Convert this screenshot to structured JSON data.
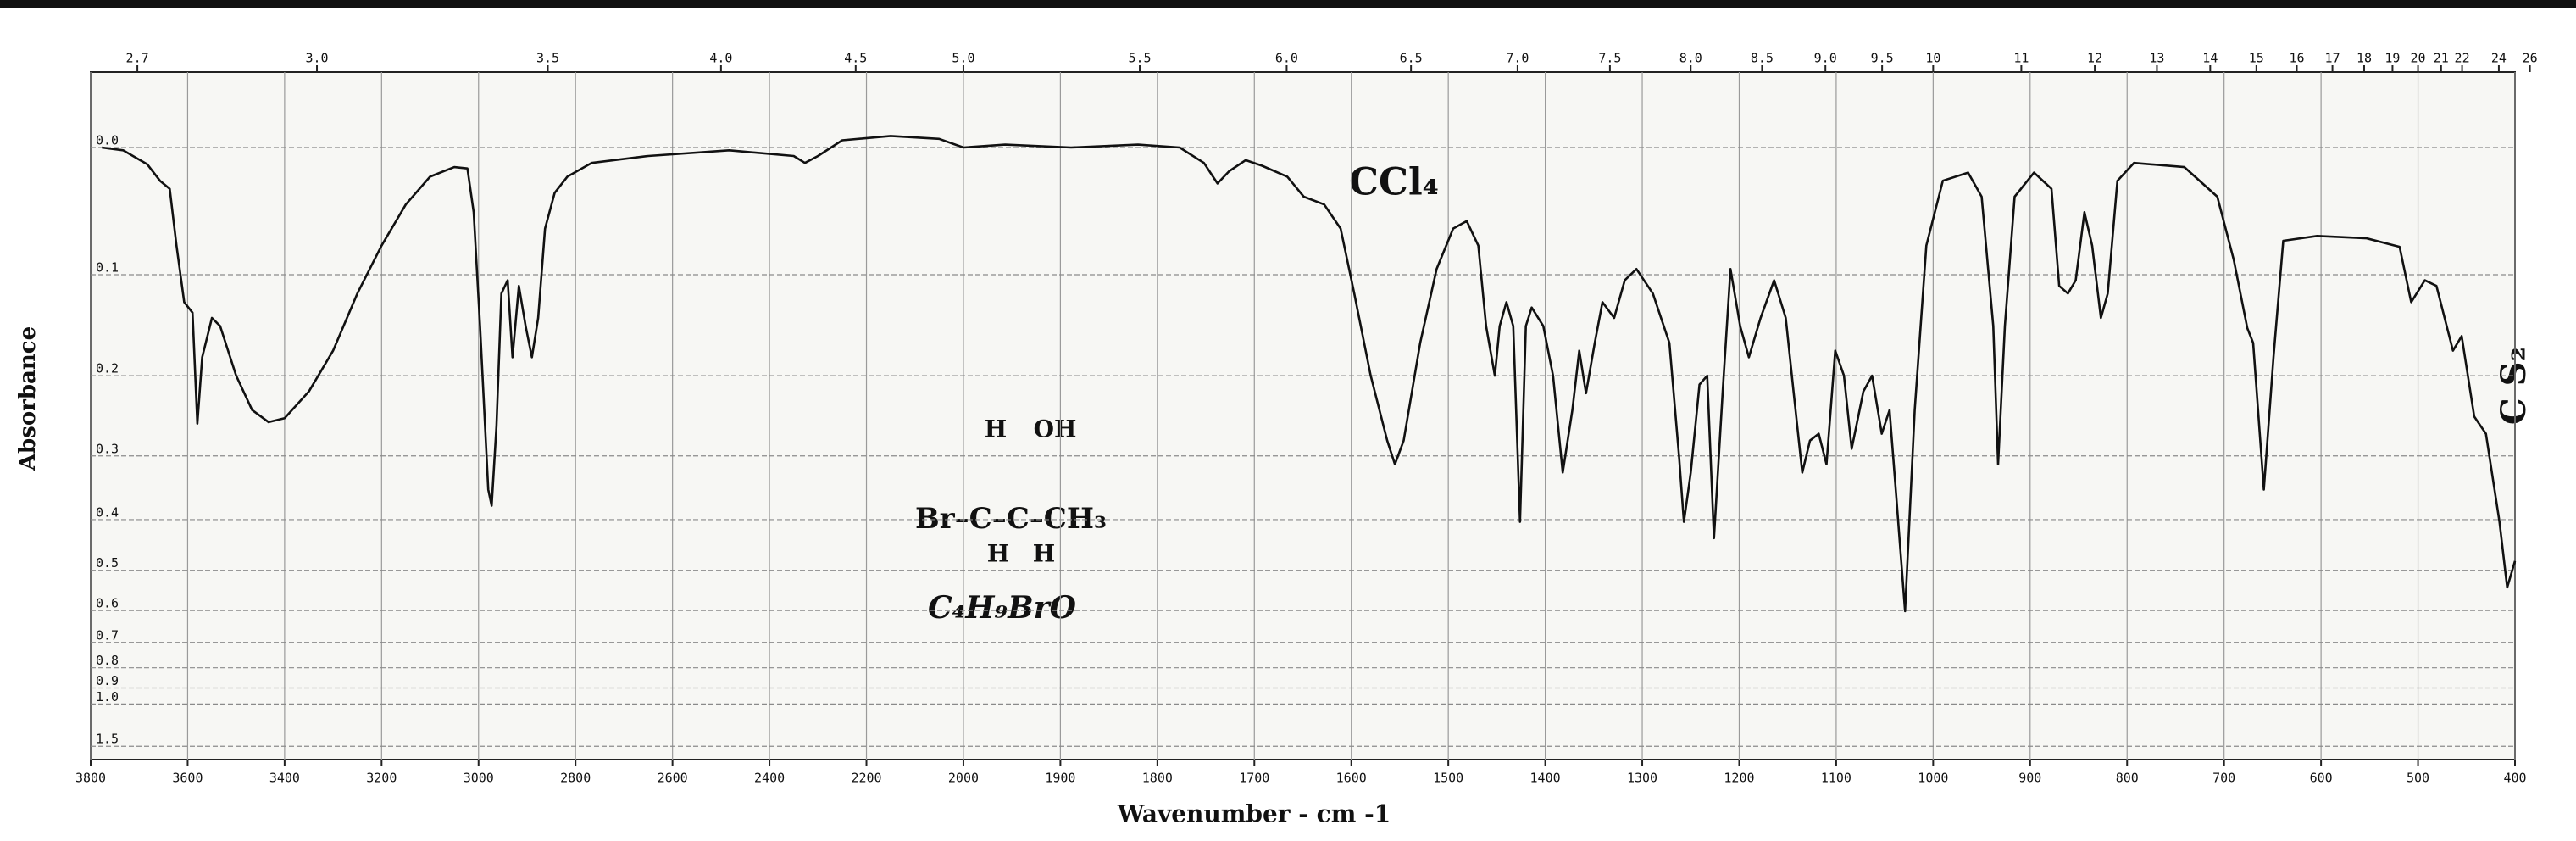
{
  "chart_data": {
    "type": "line",
    "y_label": "Absorbance",
    "x_label": "Wavenumber - cm -1",
    "yscale": "transmittance",
    "grid": true,
    "color": "#111111",
    "xlim": [
      3800,
      400
    ],
    "xticks": [
      3800,
      3600,
      3400,
      3200,
      3000,
      2800,
      2600,
      2400,
      2200,
      2000,
      1900,
      1800,
      1700,
      1600,
      1500,
      1400,
      1300,
      1200,
      1100,
      1000,
      900,
      800,
      700,
      600,
      500,
      400
    ],
    "x2ticks": [
      2.7,
      {
        "value": 3,
        "label": "3.0"
      },
      3.5,
      {
        "value": 4,
        "label": "4.0"
      },
      4.5,
      {
        "value": 5,
        "label": "5.0"
      },
      5.5,
      {
        "value": 6,
        "label": "6.0"
      },
      6.5,
      {
        "value": 7,
        "label": "7.0"
      },
      7.5,
      {
        "value": 8,
        "label": "8.0"
      },
      8.5,
      {
        "value": 9,
        "label": "9.0"
      },
      9.5,
      10,
      11,
      12,
      13,
      14,
      15,
      16,
      17,
      18,
      19,
      20,
      21,
      22,
      24,
      26
    ],
    "ylim": [
      -0.05,
      2
    ],
    "yticks": [
      {
        "value": 0,
        "label": "0.0"
      },
      0.1,
      0.2,
      0.3,
      0.4,
      0.5,
      0.6,
      0.7,
      0.8,
      0.9,
      {
        "value": 1,
        "label": "1.0"
      },
      1.5
    ],
    "solvent_labels": [
      "CCl₄",
      "C S₂"
    ],
    "structure": {
      "top": [
        "H",
        "OH"
      ],
      "main": "Br–C–C–CH₃",
      "bottom": [
        "H",
        "H"
      ]
    },
    "formula": "C₄H₉BrO",
    "x": [
      3777,
      3733,
      3683,
      3657,
      3637,
      3623,
      3607,
      3590,
      3580,
      3570,
      3550,
      3533,
      3500,
      3467,
      3433,
      3400,
      3350,
      3300,
      3250,
      3200,
      3150,
      3100,
      3050,
      3023,
      3010,
      2997,
      2980,
      2973,
      2963,
      2953,
      2940,
      2930,
      2917,
      2903,
      2890,
      2877,
      2863,
      2843,
      2817,
      2767,
      2650,
      2483,
      2350,
      2327,
      2300,
      2250,
      2150,
      2050,
      2000,
      1957,
      1889,
      1820,
      1777,
      1752,
      1738,
      1726,
      1709,
      1692,
      1666,
      1649,
      1628,
      1611,
      1597,
      1580,
      1563,
      1555,
      1546,
      1529,
      1512,
      1495,
      1481,
      1469,
      1461,
      1452,
      1447,
      1440,
      1433,
      1426,
      1420,
      1414,
      1402,
      1392,
      1382,
      1372,
      1365,
      1358,
      1349,
      1341,
      1329,
      1318,
      1306,
      1289,
      1272,
      1262,
      1257,
      1250,
      1241,
      1233,
      1226,
      1217,
      1209,
      1199,
      1190,
      1178,
      1164,
      1152,
      1144,
      1135,
      1127,
      1118,
      1110,
      1101,
      1092,
      1084,
      1072,
      1063,
      1053,
      1045,
      1038,
      1029,
      1019,
      1007,
      990,
      964,
      950,
      938,
      933,
      926,
      916,
      896,
      878,
      870,
      861,
      853,
      844,
      836,
      827,
      820,
      810,
      793,
      741,
      707,
      690,
      676,
      670,
      659,
      649,
      639,
      604,
      553,
      519,
      507,
      493,
      481,
      464,
      455,
      442,
      430,
      416,
      408,
      400
    ],
    "values": [
      0,
      0.002,
      0.012,
      0.024,
      0.03,
      0.075,
      0.125,
      0.135,
      0.257,
      0.18,
      0.14,
      0.148,
      0.2,
      0.24,
      0.255,
      0.25,
      0.218,
      0.173,
      0.117,
      0.075,
      0.042,
      0.021,
      0.014,
      0.015,
      0.048,
      0.148,
      0.35,
      0.376,
      0.26,
      0.117,
      0.105,
      0.18,
      0.11,
      0.148,
      0.18,
      0.14,
      0.061,
      0.033,
      0.021,
      0.011,
      0.006,
      0.002,
      0.006,
      0.011,
      0.006,
      -0.005,
      -0.008,
      -0.006,
      0,
      -0.002,
      0,
      -0.002,
      0,
      0.011,
      0.026,
      0.017,
      0.009,
      0.013,
      0.021,
      0.036,
      0.042,
      0.061,
      0.117,
      0.2,
      0.279,
      0.312,
      0.279,
      0.165,
      0.095,
      0.061,
      0.055,
      0.075,
      0.148,
      0.2,
      0.148,
      0.125,
      0.148,
      0.404,
      0.148,
      0.13,
      0.148,
      0.2,
      0.324,
      0.24,
      0.173,
      0.22,
      0.165,
      0.125,
      0.14,
      0.105,
      0.095,
      0.117,
      0.165,
      0.301,
      0.404,
      0.324,
      0.21,
      0.2,
      0.434,
      0.218,
      0.095,
      0.148,
      0.18,
      0.14,
      0.105,
      0.14,
      0.218,
      0.324,
      0.279,
      0.27,
      0.312,
      0.173,
      0.2,
      0.29,
      0.218,
      0.2,
      0.27,
      0.24,
      0.362,
      0.602,
      0.24,
      0.075,
      0.024,
      0.018,
      0.036,
      0.148,
      0.312,
      0.148,
      0.036,
      0.018,
      0.03,
      0.11,
      0.117,
      0.105,
      0.048,
      0.075,
      0.14,
      0.117,
      0.024,
      0.011,
      0.014,
      0.036,
      0.087,
      0.15,
      0.165,
      0.35,
      0.18,
      0.071,
      0.067,
      0.069,
      0.076,
      0.125,
      0.105,
      0.11,
      0.173,
      0.158,
      0.248,
      0.27,
      0.404,
      0.54,
      0.48
    ]
  }
}
